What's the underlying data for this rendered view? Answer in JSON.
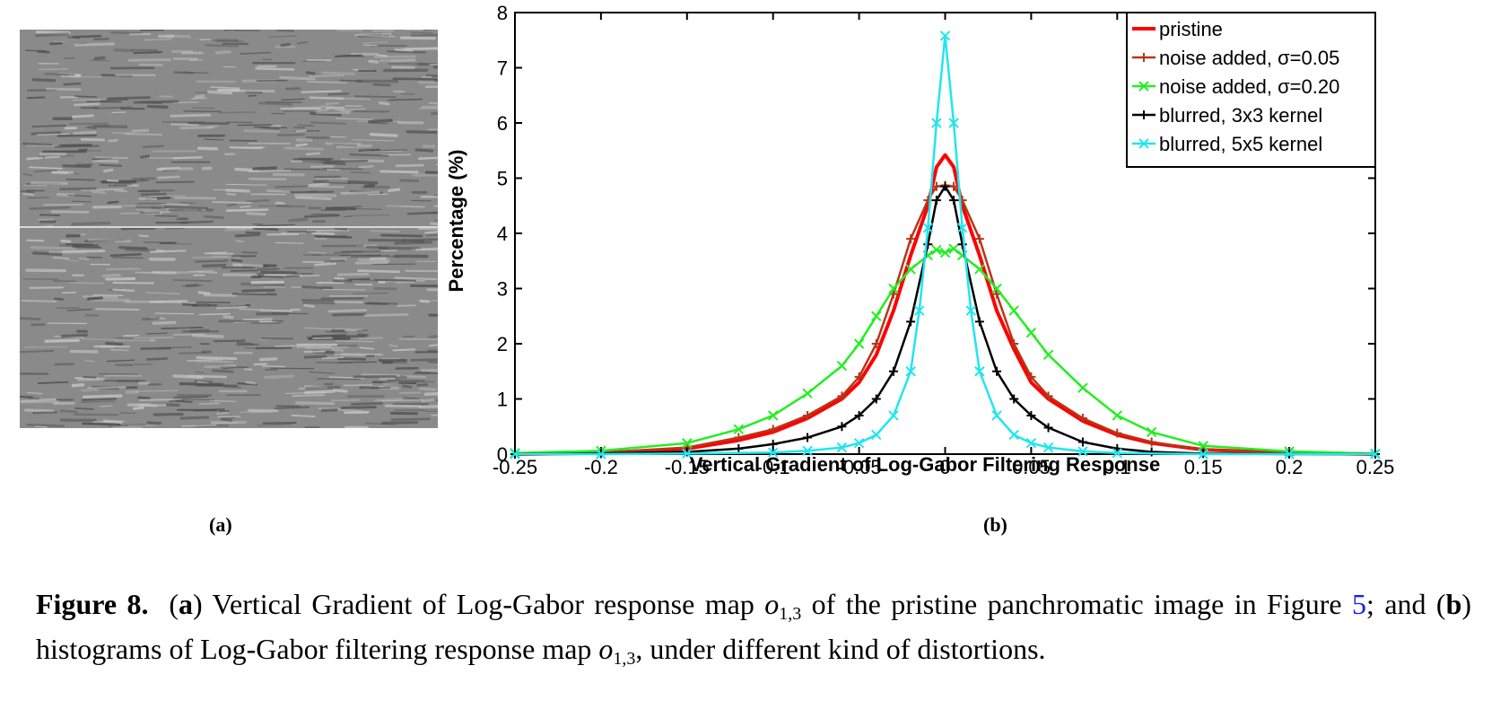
{
  "panel_a": {
    "label": "(a)"
  },
  "panel_b": {
    "label": "(b)"
  },
  "caption": {
    "figure_label": "Figure 8.",
    "p1": "(",
    "a_letter": "a",
    "p2": ") Vertical Gradient of Log-Gabor response map ",
    "o_symbol": "o",
    "o_subscript": "1,3",
    "p3": " of the pristine panchromatic image in Figure ",
    "ref": "5",
    "p4": "; and (",
    "b_letter": "b",
    "p5": ") histograms of Log-Gabor filtering response map ",
    "o2_symbol": "o",
    "o2_subscript": "1,3",
    "p6": ", under different kind of distortions."
  },
  "chart_data": {
    "type": "line",
    "title": "",
    "xlabel": "Vertical Gradient of Log-Gabor Filtering Response",
    "ylabel": "Percentage (%)",
    "xlim": [
      -0.25,
      0.25
    ],
    "ylim": [
      0,
      8
    ],
    "x_ticks": [
      "-0.25",
      "-0.2",
      "-0.15",
      "-0.1",
      "-0.05",
      "0",
      "0.05",
      "0.1",
      "0.15",
      "0.2",
      "0.25"
    ],
    "y_ticks": [
      "0",
      "1",
      "2",
      "3",
      "4",
      "5",
      "6",
      "7",
      "8"
    ],
    "grid": false,
    "legend_position": "top-right",
    "series": [
      {
        "name": "pristine",
        "color": "#ff0000",
        "marker": "none",
        "x": [
          -0.25,
          -0.2,
          -0.15,
          -0.12,
          -0.1,
          -0.08,
          -0.06,
          -0.05,
          -0.04,
          -0.03,
          -0.02,
          -0.01,
          -0.005,
          0,
          0.005,
          0.01,
          0.02,
          0.03,
          0.04,
          0.05,
          0.06,
          0.08,
          0.1,
          0.12,
          0.15,
          0.2,
          0.25
        ],
        "y": [
          0.0,
          0.02,
          0.1,
          0.25,
          0.4,
          0.65,
          1.0,
          1.3,
          1.8,
          2.6,
          3.6,
          4.5,
          5.2,
          5.42,
          5.2,
          4.5,
          3.6,
          2.6,
          1.9,
          1.3,
          1.0,
          0.6,
          0.35,
          0.2,
          0.08,
          0.02,
          0.0
        ]
      },
      {
        "name": "noise added, σ=0.05",
        "color": "#b5361a",
        "marker": "plus",
        "x": [
          -0.25,
          -0.2,
          -0.15,
          -0.12,
          -0.1,
          -0.08,
          -0.06,
          -0.05,
          -0.04,
          -0.03,
          -0.02,
          -0.01,
          -0.005,
          0,
          0.005,
          0.01,
          0.02,
          0.03,
          0.04,
          0.05,
          0.06,
          0.08,
          0.1,
          0.12,
          0.15,
          0.2,
          0.25
        ],
        "y": [
          0.0,
          0.03,
          0.12,
          0.3,
          0.45,
          0.7,
          1.05,
          1.4,
          2.0,
          2.9,
          3.9,
          4.6,
          4.85,
          4.87,
          4.85,
          4.6,
          3.9,
          2.9,
          2.0,
          1.4,
          1.05,
          0.65,
          0.38,
          0.22,
          0.08,
          0.02,
          0.0
        ]
      },
      {
        "name": "noise added, σ=0.20",
        "color": "#22ee22",
        "marker": "x",
        "x": [
          -0.25,
          -0.2,
          -0.15,
          -0.12,
          -0.1,
          -0.08,
          -0.06,
          -0.05,
          -0.04,
          -0.03,
          -0.02,
          -0.01,
          -0.005,
          0,
          0.005,
          0.01,
          0.02,
          0.03,
          0.04,
          0.05,
          0.06,
          0.08,
          0.1,
          0.12,
          0.15,
          0.2,
          0.25
        ],
        "y": [
          0.02,
          0.06,
          0.2,
          0.45,
          0.7,
          1.1,
          1.6,
          2.0,
          2.5,
          3.0,
          3.35,
          3.6,
          3.7,
          3.65,
          3.72,
          3.6,
          3.35,
          3.0,
          2.6,
          2.2,
          1.8,
          1.2,
          0.7,
          0.4,
          0.15,
          0.05,
          0.01
        ]
      },
      {
        "name": "blurred, 3x3 kernel",
        "color": "#000000",
        "marker": "plus",
        "x": [
          -0.25,
          -0.2,
          -0.15,
          -0.12,
          -0.1,
          -0.08,
          -0.06,
          -0.05,
          -0.04,
          -0.03,
          -0.02,
          -0.01,
          -0.005,
          0,
          0.005,
          0.01,
          0.02,
          0.03,
          0.04,
          0.05,
          0.06,
          0.08,
          0.1,
          0.12,
          0.15,
          0.2,
          0.25
        ],
        "y": [
          0.0,
          0.01,
          0.04,
          0.1,
          0.18,
          0.3,
          0.5,
          0.7,
          1.0,
          1.5,
          2.4,
          3.8,
          4.6,
          4.85,
          4.6,
          3.8,
          2.4,
          1.5,
          1.0,
          0.7,
          0.48,
          0.22,
          0.1,
          0.04,
          0.01,
          0.0,
          0.0
        ]
      },
      {
        "name": "blurred, 5x5 kernel",
        "color": "#22e5ee",
        "marker": "x",
        "x": [
          -0.25,
          -0.2,
          -0.15,
          -0.1,
          -0.08,
          -0.06,
          -0.05,
          -0.04,
          -0.03,
          -0.02,
          -0.015,
          -0.01,
          -0.005,
          0,
          0.005,
          0.01,
          0.015,
          0.02,
          0.03,
          0.04,
          0.05,
          0.06,
          0.08,
          0.1,
          0.15,
          0.2,
          0.25
        ],
        "y": [
          0.0,
          0.0,
          0.01,
          0.03,
          0.06,
          0.12,
          0.2,
          0.35,
          0.7,
          1.5,
          2.6,
          4.1,
          6.0,
          7.58,
          6.0,
          4.1,
          2.6,
          1.5,
          0.7,
          0.35,
          0.2,
          0.12,
          0.05,
          0.02,
          0.0,
          0.0,
          0.0
        ]
      }
    ]
  }
}
